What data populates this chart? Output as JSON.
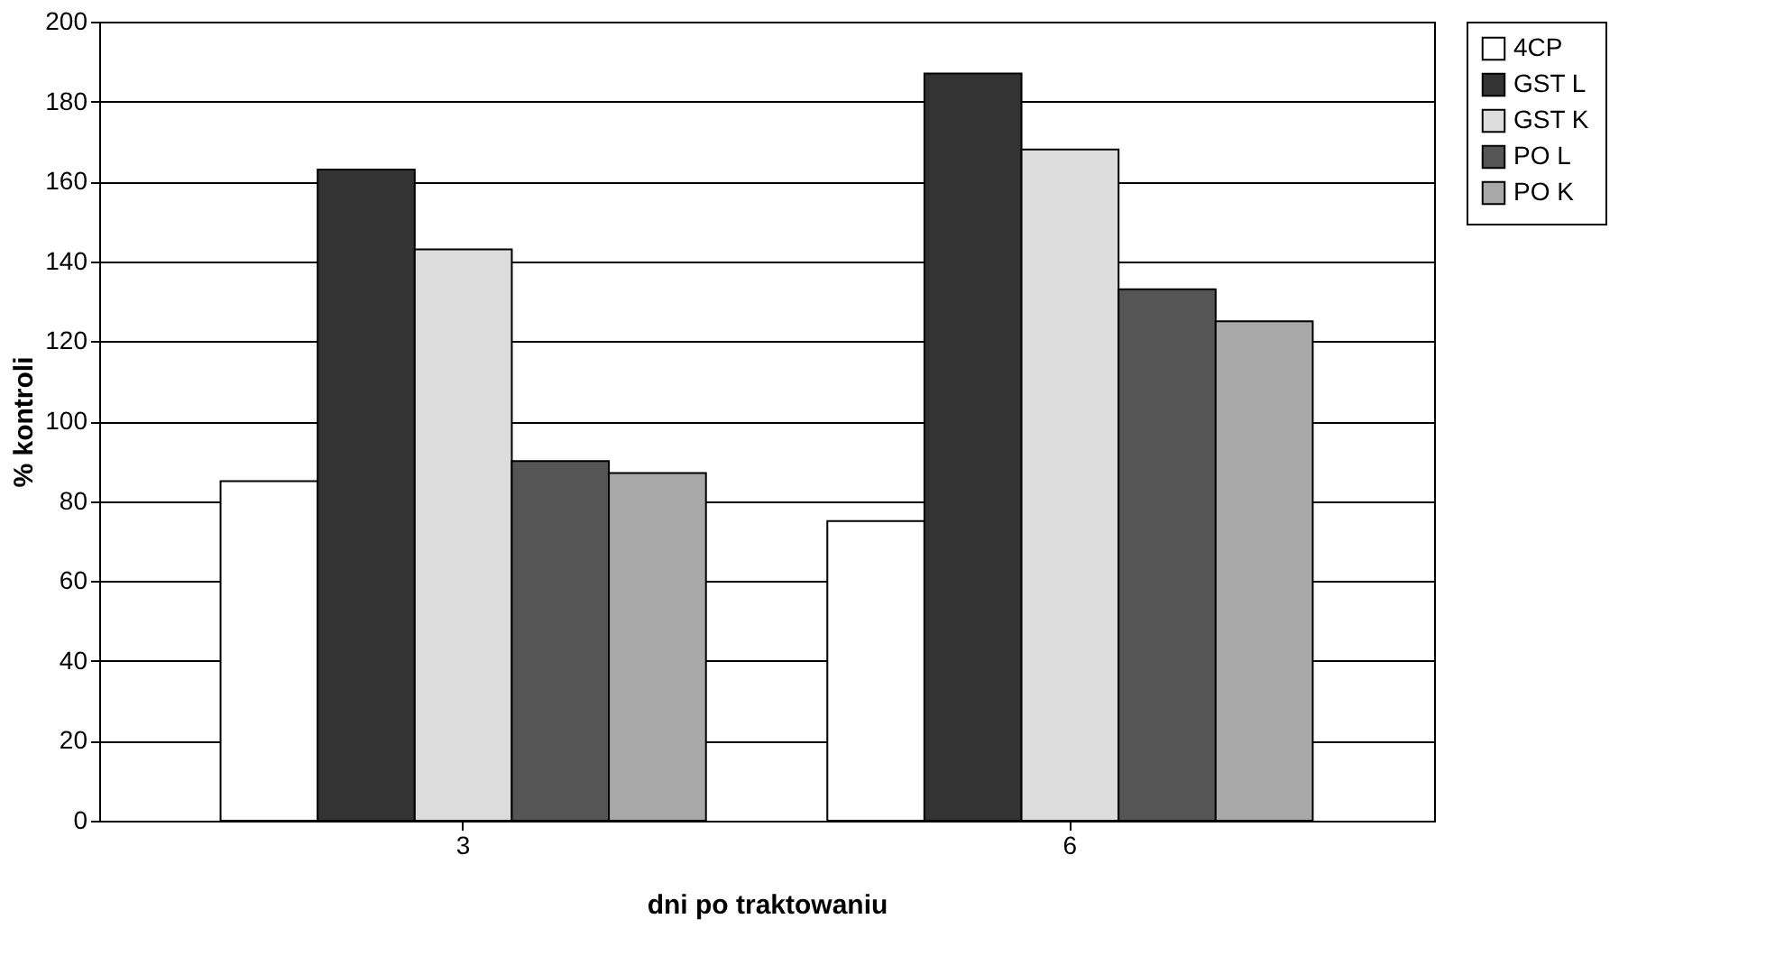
{
  "chart_data": {
    "type": "bar",
    "xlabel": "dni po traktowaniu",
    "ylabel": "% kontroli",
    "categories": [
      "3",
      "6"
    ],
    "series": [
      {
        "name": "4CP",
        "color": "#ffffff",
        "values": [
          85,
          75
        ]
      },
      {
        "name": "GST L",
        "color": "#333333",
        "values": [
          163,
          187
        ]
      },
      {
        "name": "GST K",
        "color": "#dcdcdc",
        "values": [
          143,
          168
        ]
      },
      {
        "name": "PO L",
        "color": "#555555",
        "values": [
          90,
          133
        ]
      },
      {
        "name": "PO K",
        "color": "#a8a8a8",
        "values": [
          87,
          125
        ]
      }
    ],
    "ylim": [
      0,
      200
    ],
    "yticks": [
      0,
      20,
      40,
      60,
      80,
      100,
      120,
      140,
      160,
      180,
      200
    ],
    "grid": "y",
    "legend": "right"
  }
}
